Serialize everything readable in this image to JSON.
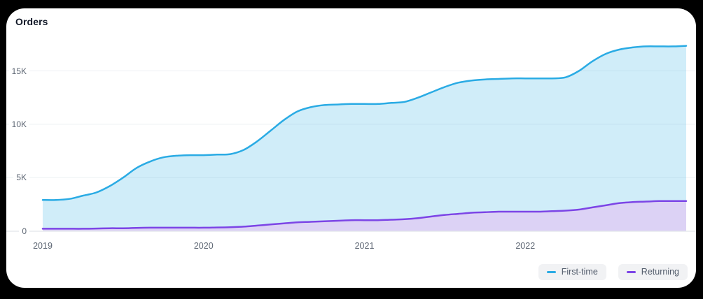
{
  "title": "Orders",
  "colors": {
    "page_bg": "#000000",
    "card_bg": "#ffffff",
    "grid_line": "#eef0f3",
    "axis_line": "#e2e5e9",
    "tick_text": "#5d6673",
    "legend_bg": "#f1f2f4",
    "legend_text": "#525c6b",
    "first_time_line": "#2aabe4",
    "returning_line": "#7c45e6"
  },
  "chart_data": {
    "type": "area",
    "title": "Orders",
    "x_start": "2019-01",
    "x_interval": "month",
    "x_points": 49,
    "x_ticks": [
      {
        "label": "2019",
        "month_index": 0
      },
      {
        "label": "2020",
        "month_index": 12
      },
      {
        "label": "2021",
        "month_index": 24
      },
      {
        "label": "2022",
        "month_index": 36
      }
    ],
    "y_ticks": [
      {
        "label": "0",
        "value": 0
      },
      {
        "label": "5K",
        "value": 5000
      },
      {
        "label": "10K",
        "value": 10000
      },
      {
        "label": "15K",
        "value": 15000
      }
    ],
    "ylim": [
      0,
      18000
    ],
    "grid": "horizontal",
    "legend_position": "bottom-right",
    "series": [
      {
        "name": "First-time",
        "line_color": "#2aabe4",
        "fill_color": "rgba(42,171,228,0.22)",
        "values": [
          2900,
          2900,
          3000,
          3300,
          3600,
          4200,
          5000,
          5900,
          6500,
          6900,
          7050,
          7100,
          7100,
          7150,
          7200,
          7600,
          8400,
          9400,
          10400,
          11200,
          11600,
          11800,
          11850,
          11900,
          11900,
          11900,
          12000,
          12100,
          12500,
          13000,
          13500,
          13900,
          14100,
          14200,
          14250,
          14300,
          14300,
          14300,
          14300,
          14400,
          15000,
          15900,
          16600,
          17000,
          17200,
          17300,
          17300,
          17300,
          17350
        ]
      },
      {
        "name": "Returning",
        "line_color": "#7c45e6",
        "fill_color": "#dcd2f5",
        "values": [
          200,
          200,
          200,
          200,
          220,
          250,
          250,
          280,
          300,
          300,
          300,
          300,
          300,
          320,
          350,
          400,
          500,
          600,
          700,
          800,
          850,
          900,
          950,
          1000,
          1000,
          1000,
          1050,
          1100,
          1200,
          1350,
          1500,
          1600,
          1700,
          1750,
          1800,
          1800,
          1800,
          1800,
          1850,
          1900,
          2000,
          2200,
          2400,
          2600,
          2700,
          2750,
          2800,
          2800,
          2800
        ]
      }
    ]
  }
}
